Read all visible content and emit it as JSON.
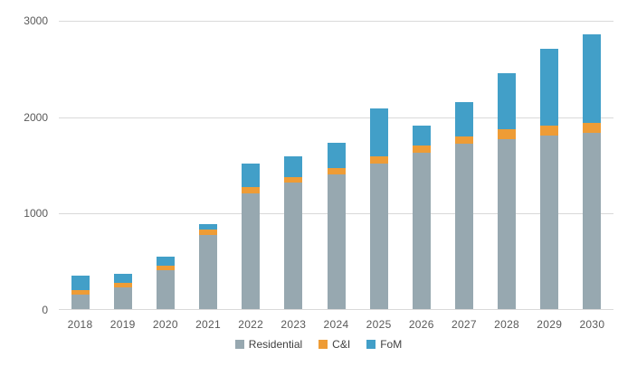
{
  "chart_data": {
    "type": "bar",
    "stacked": true,
    "title": "",
    "xlabel": "",
    "ylabel": "",
    "categories": [
      "2018",
      "2019",
      "2020",
      "2021",
      "2022",
      "2023",
      "2024",
      "2025",
      "2026",
      "2027",
      "2028",
      "2029",
      "2030"
    ],
    "series": [
      {
        "name": "Residential",
        "color": "#97A8B0",
        "values": [
          150,
          225,
          405,
          770,
          1200,
          1310,
          1400,
          1505,
          1620,
          1720,
          1765,
          1800,
          1830
        ]
      },
      {
        "name": "C&I",
        "color": "#EE9C36",
        "values": [
          50,
          50,
          45,
          55,
          65,
          60,
          60,
          80,
          75,
          75,
          100,
          105,
          105
        ]
      },
      {
        "name": "FoM",
        "color": "#429FC8",
        "values": [
          150,
          95,
          95,
          55,
          245,
          215,
          265,
          495,
          210,
          355,
          585,
          795,
          915
        ]
      }
    ],
    "ylim": [
      0,
      3000
    ],
    "yticks": [
      0,
      1000,
      2000,
      3000
    ],
    "grid": "horizontal",
    "legend_position": "bottom"
  },
  "colors": {
    "background": "#FFFFFF",
    "gridline": "#D9D9D9",
    "axis_line": "#D9D9D9",
    "tick_text": "#595959",
    "legend_text": "#404040"
  }
}
